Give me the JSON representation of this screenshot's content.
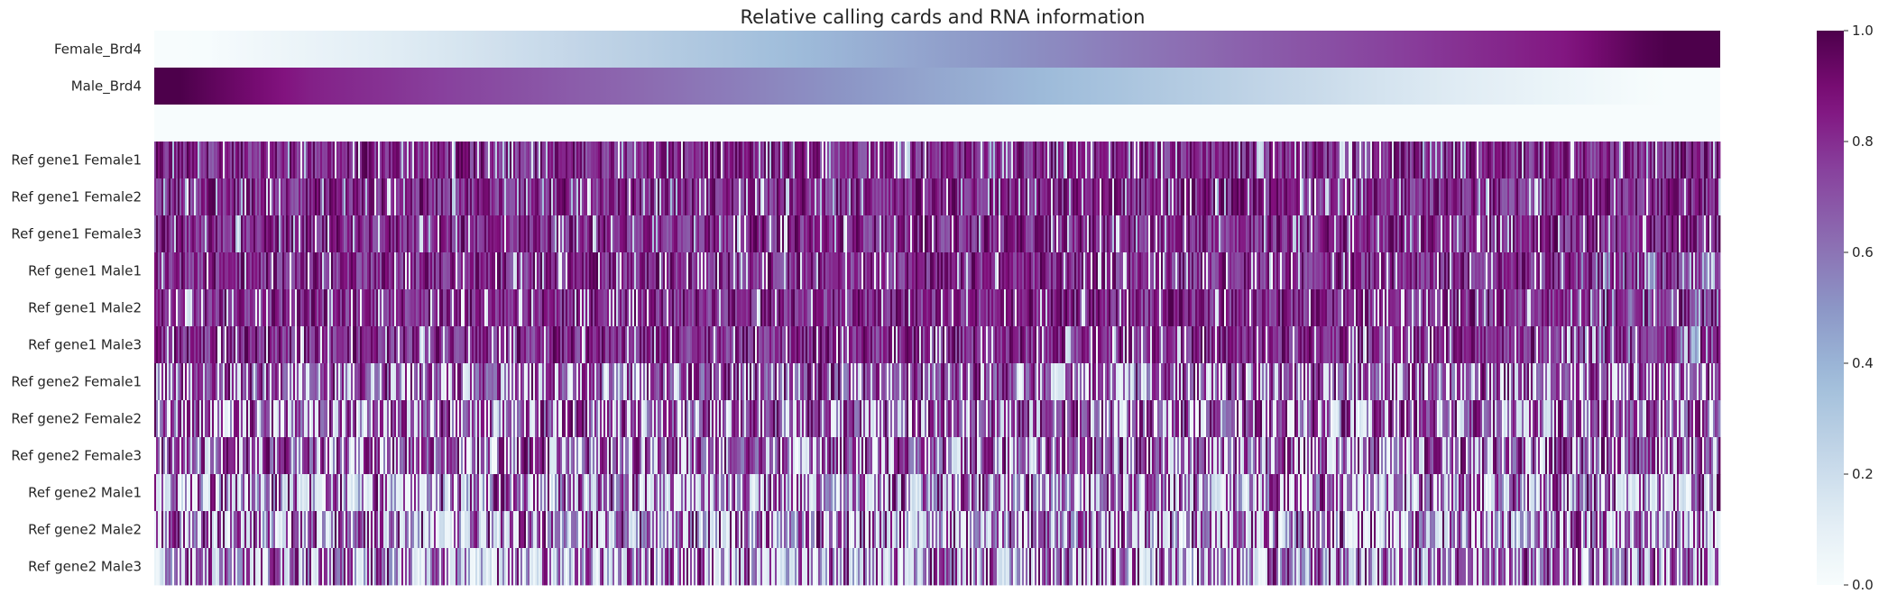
{
  "chart_data": {
    "type": "heatmap",
    "title": "Relative calling cards and RNA information",
    "rows": [
      "Female_Brd4",
      "Male_Brd4",
      "",
      "Ref gene1 Female1",
      "Ref gene1 Female2",
      "Ref gene1 Female3",
      "Ref gene1 Male1",
      "Ref gene1 Male2",
      "Ref gene1 Male3",
      "Ref gene2 Female1",
      "Ref gene2 Female2",
      "Ref gene2 Female3",
      "Ref gene2 Male1",
      "Ref gene2 Male2",
      "Ref gene2 Male3"
    ],
    "colormap": "BuPu",
    "colormap_stops": [
      "#f7fcfd",
      "#e0ecf4",
      "#bfd3e6",
      "#9ebcda",
      "#8c96c6",
      "#8c6bb1",
      "#88419d",
      "#810f7c",
      "#4d004b"
    ],
    "vmin": 0.0,
    "vmax": 1.0,
    "colorbar_ticks": [
      "0.0",
      "0.2",
      "0.4",
      "0.6",
      "0.8",
      "1.0"
    ],
    "profiles": {
      "Female_Brd4": "gradient from 0.0 (left) to 1.0 (right)",
      "Male_Brd4": "gradient from 1.0 (left) to 0.0 (right)",
      "gap_row": "0.0",
      "Ref gene1 Female1-3": "dense, mostly 0.7-1.0",
      "Ref gene1 Male1-3": "dense, mostly 0.7-1.0, lighter toward right edge",
      "Ref gene2 Female1-3": "mixed, many near 0 and many near 1",
      "Ref gene2 Male1-3": "mixed, more near 0"
    }
  }
}
